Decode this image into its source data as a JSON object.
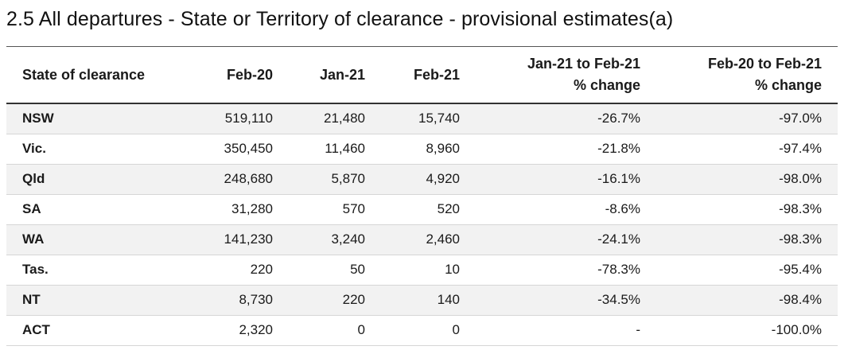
{
  "title": "2.5 All departures - State or Territory of clearance - provisional estimates(a)",
  "headers": {
    "state": "State of clearance",
    "feb20": "Feb-20",
    "jan21": "Jan-21",
    "feb21": "Feb-21",
    "change1_line1": "Jan-21 to Feb-21",
    "change1_line2": "% change",
    "change2_line1": "Feb-20 to Feb-21",
    "change2_line2": "% change"
  },
  "rows": [
    {
      "state": "NSW",
      "feb20": "519,110",
      "jan21": "21,480",
      "feb21": "15,740",
      "change1": "-26.7%",
      "change2": "-97.0%"
    },
    {
      "state": "Vic.",
      "feb20": "350,450",
      "jan21": "11,460",
      "feb21": "8,960",
      "change1": "-21.8%",
      "change2": "-97.4%"
    },
    {
      "state": "Qld",
      "feb20": "248,680",
      "jan21": "5,870",
      "feb21": "4,920",
      "change1": "-16.1%",
      "change2": "-98.0%"
    },
    {
      "state": "SA",
      "feb20": "31,280",
      "jan21": "570",
      "feb21": "520",
      "change1": "-8.6%",
      "change2": "-98.3%"
    },
    {
      "state": "WA",
      "feb20": "141,230",
      "jan21": "3,240",
      "feb21": "2,460",
      "change1": "-24.1%",
      "change2": "-98.3%"
    },
    {
      "state": "Tas.",
      "feb20": "220",
      "jan21": "50",
      "feb21": "10",
      "change1": "-78.3%",
      "change2": "-95.4%"
    },
    {
      "state": "NT",
      "feb20": "8,730",
      "jan21": "220",
      "feb21": "140",
      "change1": "-34.5%",
      "change2": "-98.4%"
    },
    {
      "state": "ACT",
      "feb20": "2,320",
      "jan21": "0",
      "feb21": "0",
      "change1": "-",
      "change2": "-100.0%"
    }
  ]
}
